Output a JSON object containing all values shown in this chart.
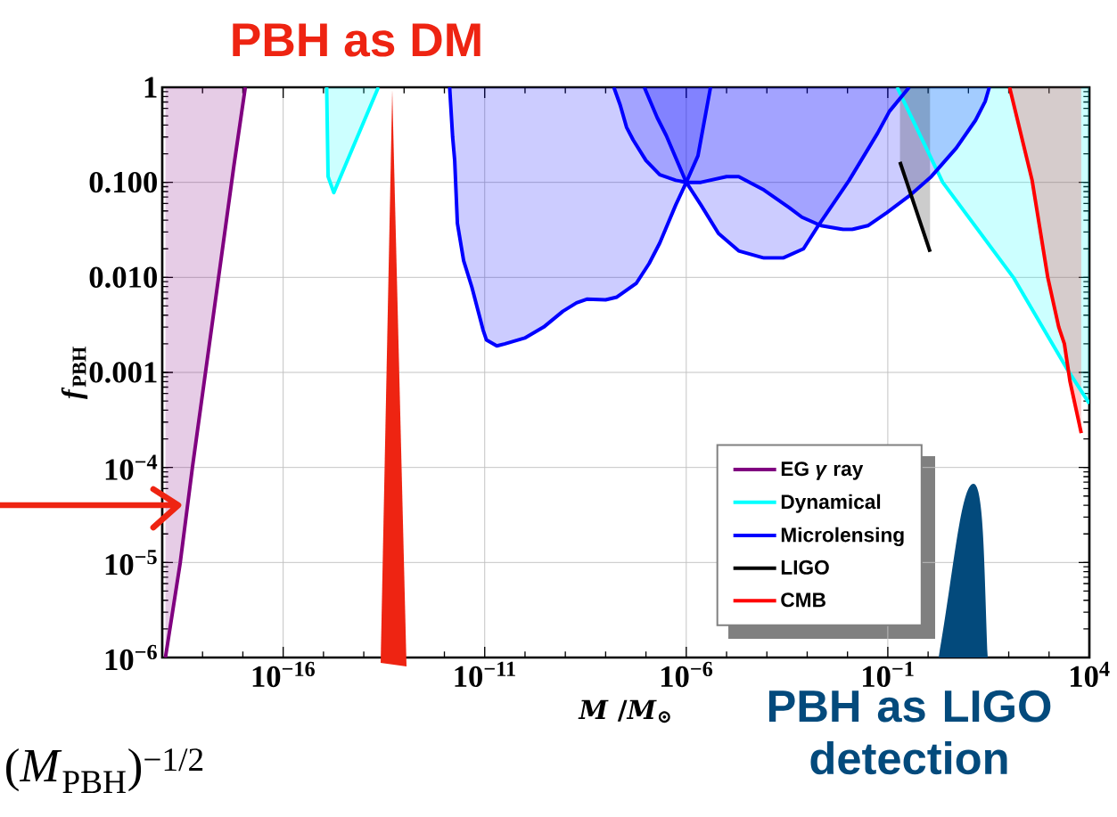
{
  "chart_data": {
    "type": "line",
    "title": "PBH as DM",
    "xlabel": "*M* /*M*$_{⊙}$",
    "ylabel": "*f*$_{PBH}$",
    "annotations": [
      "PBH as LIGO detection",
      "(*M*$_{PBH}$)$^{−1/2}$"
    ],
    "log": "xy",
    "grid": true,
    "legend": "bottom right",
    "xlim": [
      1e-19,
      10000
    ],
    "ylim": [
      1e-06,
      1
    ],
    "xticks": [
      {
        "value": 1e-18,
        "label": null
      },
      {
        "value": 1e-17,
        "label": null
      },
      {
        "value": 1e-16,
        "label": "10$^{−16}$"
      },
      {
        "value": 1e-15,
        "label": null
      },
      {
        "value": 1e-14,
        "label": null
      },
      {
        "value": 1e-13,
        "label": null
      },
      {
        "value": 1e-12,
        "label": null
      },
      {
        "value": 1e-11,
        "label": "10$^{−11}$"
      },
      {
        "value": 1e-10,
        "label": null
      },
      {
        "value": 1e-09,
        "label": null
      },
      {
        "value": 1e-08,
        "label": null
      },
      {
        "value": 1e-07,
        "label": null
      },
      {
        "value": 1e-06,
        "label": "10$^{−6}$"
      },
      {
        "value": 1e-05,
        "label": null
      },
      {
        "value": 0.0001,
        "label": null
      },
      {
        "value": 0.001,
        "label": null
      },
      {
        "value": 0.01,
        "label": null
      },
      {
        "value": 0.1,
        "label": "10$^{−1}$"
      },
      {
        "value": 1,
        "label": null
      },
      {
        "value": 10,
        "label": null
      },
      {
        "value": 100,
        "label": null
      },
      {
        "value": 1000,
        "label": null
      },
      {
        "value": 10000,
        "label": "10$^{4}$"
      }
    ],
    "yticks": [
      {
        "value": 1e-06,
        "label": "10$^{−6}$"
      },
      {
        "value": 1e-05,
        "label": "10$^{−5}$"
      },
      {
        "value": 0.0001,
        "label": "10$^{−4}$"
      },
      0.001,
      {
        "value": 0.01,
        "label": "0.010"
      },
      {
        "value": 0.1,
        "label": "0.100"
      },
      1
    ],
    "series": [
      {
        "name": "EG *γ* ray",
        "color": "#800080",
        "x": [
          1.2e-19,
          2.8e-19,
          5.6e-19,
          2.5e-18,
          6e-18,
          1.15e-17
        ],
        "values": [
          1e-06,
          1e-05,
          0.0001,
          0.01,
          0.15,
          1
        ],
        "lower": [
          1e-06,
          1e-05,
          0.0001,
          0.01,
          0.15,
          1
        ],
        "upper": [
          1,
          1,
          1,
          1,
          1,
          1
        ]
      },
      {
        "name": "Dynamical",
        "color": "#00ffff",
        "x": [
          1.2e-15,
          1.3e-15,
          1.8e-15,
          2.3e-14
        ],
        "values": [
          1,
          0.115,
          0.078,
          1
        ],
        "lower": [
          1,
          0.115,
          0.078,
          1
        ],
        "upper": [
          1,
          1,
          1,
          1
        ]
      },
      {
        "color": "#00ffff",
        "x": [
          0.17,
          2.3,
          130,
          2750,
          10000
        ],
        "values": [
          1,
          0.1,
          0.01,
          0.0011,
          0.00047
        ],
        "lower": [
          1,
          0.1,
          0.01,
          0.0011,
          0.00047
        ],
        "upper": [
          1,
          1,
          1,
          1,
          1
        ]
      },
      {
        "name": "Microlensing",
        "color": "#0000ff",
        "x": [
          1.35e-12,
          1.6e-12,
          1.8e-12,
          2.1e-12,
          3e-12,
          4.8e-12,
          9.1e-12,
          1.1e-11,
          2e-11,
          3.2e-11,
          9.8e-11,
          2.9e-10,
          8.7e-10,
          1.9e-09,
          3.4e-09,
          1e-08,
          1.9e-08,
          5.8e-08,
          1.2e-07,
          2.2e-07,
          5.5e-07,
          1e-06,
          1.95e-06,
          4e-06
        ],
        "values": [
          1,
          0.3,
          0.17,
          0.037,
          0.015,
          0.0079,
          0.0028,
          0.0022,
          0.0019,
          0.002,
          0.0023,
          0.003,
          0.0044,
          0.0054,
          0.0059,
          0.0058,
          0.0062,
          0.0087,
          0.014,
          0.023,
          0.058,
          0.1,
          0.19,
          1
        ],
        "lower": [
          1,
          0.3,
          0.17,
          0.037,
          0.015,
          0.0079,
          0.0028,
          0.0022,
          0.0019,
          0.002,
          0.0023,
          0.003,
          0.0044,
          0.0054,
          0.0059,
          0.0058,
          0.0062,
          0.0087,
          0.014,
          0.023,
          0.058,
          0.1,
          0.19,
          1
        ],
        "upper": [
          1,
          1,
          1,
          1,
          1,
          1,
          1,
          1,
          1,
          1,
          1,
          1,
          1,
          1,
          1,
          1,
          1,
          1,
          1,
          1,
          1,
          1,
          1,
          1
        ]
      },
      {
        "color": "#0000ff",
        "x": [
          9.1e-08,
          1.9e-07,
          3.2e-07,
          1e-06,
          2.3e-06,
          6.3e-06,
          2e-05,
          8.5e-05,
          0.00025,
          0.00081,
          0.0018,
          0.011,
          0.056,
          0.11,
          0.34
        ],
        "values": [
          1,
          0.48,
          0.31,
          0.1,
          0.058,
          0.029,
          0.019,
          0.016,
          0.016,
          0.02,
          0.034,
          0.105,
          0.33,
          0.56,
          1
        ],
        "lower": [
          1,
          0.48,
          0.31,
          0.1,
          0.058,
          0.029,
          0.019,
          0.016,
          0.016,
          0.02,
          0.034,
          0.105,
          0.33,
          0.56,
          1
        ],
        "upper": [
          1,
          1,
          1,
          1,
          1,
          1,
          1,
          1,
          1,
          1,
          1,
          1,
          1,
          1,
          1
        ]
      },
      {
        "color": "#0000ff",
        "x": [
          1.6e-08,
          2.3e-08,
          3.3e-08,
          4.8e-08,
          1e-07,
          2.2e-07,
          5.5e-07,
          1e-06,
          2.3e-06,
          1e-05,
          2e-05,
          8.5e-05,
          0.00036,
          0.00074,
          0.0022,
          0.0078,
          0.013,
          0.032,
          0.095,
          0.34,
          1.2,
          5,
          15,
          26,
          33
        ],
        "values": [
          1,
          0.65,
          0.38,
          0.28,
          0.17,
          0.12,
          0.105,
          0.1,
          0.1,
          0.115,
          0.115,
          0.083,
          0.054,
          0.043,
          0.035,
          0.032,
          0.032,
          0.035,
          0.048,
          0.072,
          0.115,
          0.23,
          0.45,
          0.71,
          1
        ],
        "lower": [
          1,
          0.65,
          0.38,
          0.28,
          0.17,
          0.12,
          0.105,
          0.1,
          0.1,
          0.115,
          0.115,
          0.083,
          0.054,
          0.043,
          0.035,
          0.032,
          0.032,
          0.035,
          0.048,
          0.072,
          0.115,
          0.23,
          0.45,
          0.71,
          1
        ],
        "upper": [
          1,
          1,
          1,
          1,
          1,
          1,
          1,
          1,
          1,
          1,
          1,
          1,
          1,
          1,
          1,
          1,
          1,
          1,
          1,
          1,
          1,
          1,
          1,
          1,
          1
        ]
      },
      {
        "name": "LIGO",
        "color": "#000000",
        "x": [
          0.2,
          1.12
        ],
        "values": [
          0.164,
          0.0186
        ],
        "lower": [
          0.164,
          0.0186
        ],
        "upper": [
          1,
          1
        ]
      },
      {
        "name": "CMB",
        "color": "#ff0000",
        "x": [
          105,
          380,
          930,
          1740,
          2400,
          3300,
          6300
        ],
        "values": [
          1,
          0.105,
          0.01,
          0.003,
          0.002,
          0.00081,
          0.00023
        ],
        "lower": [
          1,
          0.105,
          0.01,
          0.003,
          0.002,
          0.00081,
          0.00023
        ],
        "upper": [
          1,
          1,
          1,
          1,
          1,
          1,
          1
        ]
      }
    ]
  }
}
